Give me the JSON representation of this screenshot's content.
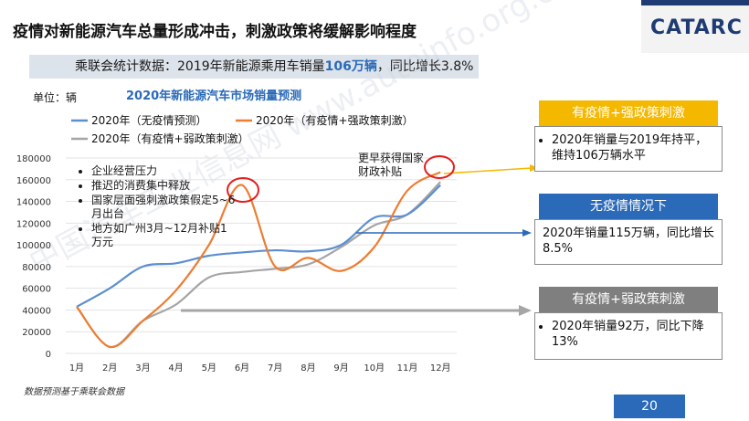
{
  "title": "疫情对新能源汽车总量形成冲击，刺激政策将缓解影响程度",
  "logo": "CATARC",
  "banner": {
    "prefix": "乘联会统计数据：2019年新能源乘用车销量",
    "highlight": "106万辆",
    "suffix": "，同比增长3.8%"
  },
  "unit_label": "单位：辆",
  "watermark": "中国汽车工业信息网 www.autoinfo.org.cn",
  "chart_data": {
    "type": "line",
    "title": "2020年新能源汽车市场销量预测",
    "ylabel": "单位：辆",
    "categories": [
      "1月",
      "2月",
      "3月",
      "4月",
      "5月",
      "6月",
      "7月",
      "8月",
      "9月",
      "10月",
      "11月",
      "12月"
    ],
    "ylim": [
      0,
      180000
    ],
    "yticks": [
      0,
      20000,
      40000,
      60000,
      80000,
      100000,
      120000,
      140000,
      160000,
      180000
    ],
    "series": [
      {
        "name": "2020年（无疫情预测）",
        "color": "#5b8fd0",
        "values": [
          43000,
          60000,
          80000,
          83000,
          90000,
          93000,
          95000,
          94000,
          100000,
          125000,
          128000,
          155000
        ]
      },
      {
        "name": "2020年（有疫情+强政策刺激）",
        "color": "#ed7d31",
        "values": [
          43000,
          6000,
          30000,
          58000,
          100000,
          155000,
          80000,
          88000,
          76000,
          98000,
          150000,
          167000
        ]
      },
      {
        "name": "2020年（有疫情+弱政策刺激）",
        "color": "#a5a5a5",
        "values": [
          43000,
          6000,
          30000,
          45000,
          70000,
          75000,
          78000,
          82000,
          98000,
          118000,
          128000,
          158000
        ]
      }
    ],
    "annotations": {
      "bullets": [
        "企业经营压力",
        "推迟的消费集中释放",
        "国家层面强刺激政策假定5~6月出台",
        "地方如广州3月~12月补贴1万元"
      ],
      "subsidy": "更早获得国家财政补贴"
    }
  },
  "panels": [
    {
      "header": "有疫情+强政策刺激",
      "header_color": "#f5b800",
      "text": "2020年销量与2019年持平，维持106万辆水平",
      "bullet": true
    },
    {
      "header": "无疫情情况下",
      "header_color": "#2a6ab8",
      "text": "2020年销量115万辆，同比增长8.5%",
      "bullet": false
    },
    {
      "header": "有疫情+弱政策刺激",
      "header_color": "#7f7f7f",
      "text": "2020年销量92万，同比下降13%",
      "bullet": true
    }
  ],
  "footnote": "数据预测基于乘联会数据",
  "page_number": "20"
}
